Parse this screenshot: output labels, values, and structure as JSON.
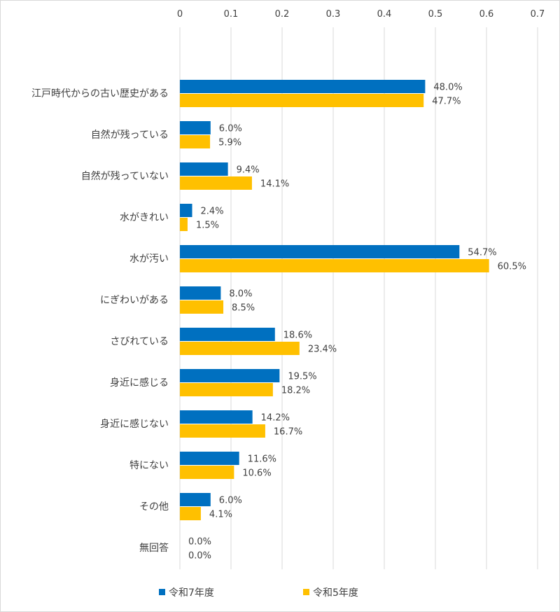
{
  "chart_data": {
    "type": "bar",
    "orientation": "horizontal",
    "categories": [
      "江戸時代からの古い歴史がある",
      "自然が残っている",
      "自然が残っていない",
      "水がきれい",
      "水が汚い",
      "にぎわいがある",
      "さびれている",
      "身近に感じる",
      "身近に感じない",
      "特にない",
      "その他",
      "無回答"
    ],
    "series": [
      {
        "name": "令和7年度",
        "color": "#0070C0",
        "values": [
          0.48,
          0.06,
          0.094,
          0.024,
          0.547,
          0.08,
          0.186,
          0.195,
          0.142,
          0.116,
          0.06,
          0.0
        ],
        "labels": [
          "48.0%",
          "6.0%",
          "9.4%",
          "2.4%",
          "54.7%",
          "8.0%",
          "18.6%",
          "19.5%",
          "14.2%",
          "11.6%",
          "6.0%",
          "0.0%"
        ]
      },
      {
        "name": "令和5年度",
        "color": "#FFC000",
        "values": [
          0.477,
          0.059,
          0.141,
          0.015,
          0.605,
          0.085,
          0.234,
          0.182,
          0.167,
          0.106,
          0.041,
          0.0
        ],
        "labels": [
          "47.7%",
          "5.9%",
          "14.1%",
          "1.5%",
          "60.5%",
          "8.5%",
          "23.4%",
          "18.2%",
          "16.7%",
          "10.6%",
          "4.1%",
          "0.0%"
        ]
      }
    ],
    "xlim": [
      0,
      0.7
    ],
    "xticks": [
      "0",
      "0.1",
      "0.2",
      "0.3",
      "0.4",
      "0.5",
      "0.6",
      "0.7"
    ],
    "xaxis_position": "top",
    "grid": true,
    "legend_position": "bottom"
  }
}
